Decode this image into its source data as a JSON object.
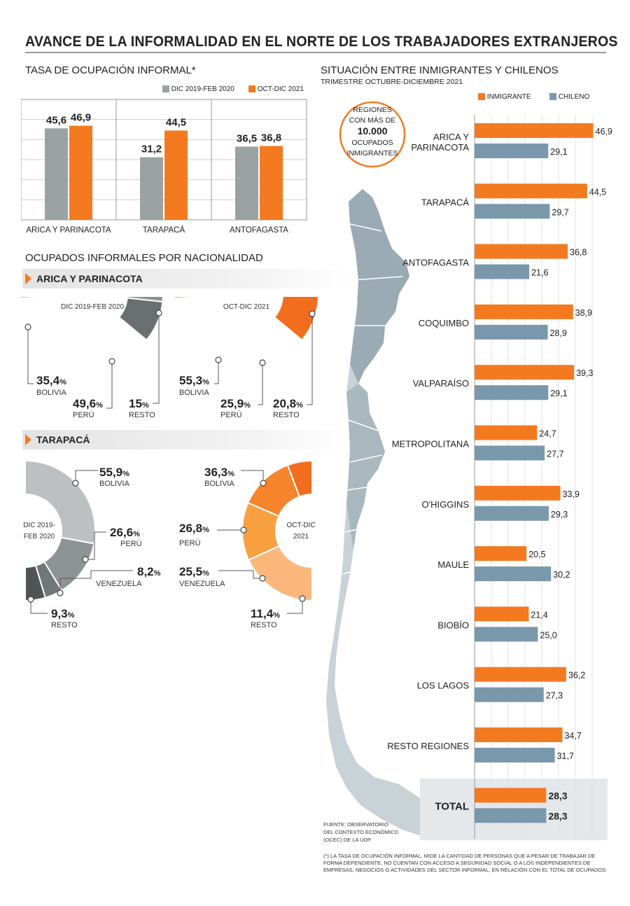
{
  "title": "AVANCE DE LA INFORMALIDAD EN EL NORTE DE LOS TRABAJADORES EXTRANJEROS",
  "colors": {
    "gray": "#9aa2a2",
    "orange": "#f47a20",
    "blue": "#7a98ab",
    "dark": "#505454"
  },
  "chart_data": [
    {
      "type": "bar",
      "title": "TASA DE OCUPACIÓN INFORMAL*",
      "categories": [
        "ARICA Y PARINACOTA",
        "TARAPACÁ",
        "ANTOFAGASTA"
      ],
      "series": [
        {
          "name": "DIC 2019-FEB 2020",
          "values": [
            45.6,
            31.2,
            36.5
          ],
          "labels": [
            "45,6",
            "31,2",
            "36,5"
          ]
        },
        {
          "name": "OCT-DIC 2021",
          "values": [
            46.9,
            44.5,
            36.8
          ],
          "labels": [
            "46,9",
            "44,5",
            "36,8"
          ]
        }
      ],
      "ylim": [
        0,
        60
      ]
    },
    {
      "type": "pie",
      "title": "OCUPADOS INFORMALES POR NACIONALIDAD",
      "region": "ARICA Y PARINACOTA",
      "period": "DIC 2019-FEB 2020",
      "slices": [
        {
          "label": "BOLIVIA",
          "value": 35.4,
          "text": "35,4"
        },
        {
          "label": "PERÚ",
          "value": 49.6,
          "text": "49,6"
        },
        {
          "label": "RESTO",
          "value": 15,
          "text": "15"
        }
      ]
    },
    {
      "type": "pie",
      "region": "ARICA Y PARINACOTA",
      "period": "OCT-DIC 2021",
      "slices": [
        {
          "label": "BOLIVIA",
          "value": 55.3,
          "text": "55,3"
        },
        {
          "label": "PERÚ",
          "value": 25.9,
          "text": "25,9"
        },
        {
          "label": "RESTO",
          "value": 20.8,
          "text": "20,8"
        }
      ]
    },
    {
      "type": "pie",
      "region": "TARAPACÁ",
      "period": "DIC 2019-FEB 2020",
      "slices": [
        {
          "label": "BOLIVIA",
          "value": 55.9,
          "text": "55,9"
        },
        {
          "label": "PERÚ",
          "value": 26.6,
          "text": "26,6"
        },
        {
          "label": "VENEZUELA",
          "value": 8.2,
          "text": "8,2"
        },
        {
          "label": "RESTO",
          "value": 9.3,
          "text": "9,3"
        }
      ]
    },
    {
      "type": "pie",
      "region": "TARAPACÁ",
      "period": "OCT-DIC 2021",
      "slices": [
        {
          "label": "BOLIVIA",
          "value": 36.3,
          "text": "36,3"
        },
        {
          "label": "PERÚ",
          "value": 26.8,
          "text": "26,8"
        },
        {
          "label": "VENEZUELA",
          "value": 25.5,
          "text": "25,5"
        },
        {
          "label": "RESTO",
          "value": 11.4,
          "text": "11,4"
        }
      ]
    },
    {
      "type": "bar",
      "orientation": "horizontal",
      "title": "SITUACIÓN ENTRE INMIGRANTES Y CHILENOS",
      "subtitle": "TRIMESTRE OCTUBRE-DICIEMBRE 2021",
      "categories": [
        "ARICA Y PARINACOTA",
        "TARAPACÁ",
        "ANTOFAGASTA",
        "COQUIMBO",
        "VALPARAÍSO",
        "METROPOLITANA",
        "O'HIGGINS",
        "MAULE",
        "BIOBÍO",
        "LOS LAGOS",
        "RESTO REGIONES",
        "TOTAL"
      ],
      "series": [
        {
          "name": "INMIGRANTE",
          "values": [
            46.9,
            44.5,
            36.8,
            38.9,
            39.3,
            24.7,
            33.9,
            20.5,
            21.4,
            36.2,
            34.7,
            28.3
          ],
          "labels": [
            "46,9",
            "44,5",
            "36,8",
            "38,9",
            "39,3",
            "24,7",
            "33,9",
            "20,5",
            "21,4",
            "36,2",
            "34,7",
            "28,3"
          ]
        },
        {
          "name": "CHILENO",
          "values": [
            29.1,
            29.7,
            21.6,
            28.9,
            29.1,
            27.7,
            29.3,
            30.2,
            25.0,
            27.3,
            31.7,
            28.3
          ],
          "labels": [
            "29,1",
            "29,7",
            "21,6",
            "28,9",
            "29,1",
            "27,7",
            "29,3",
            "30,2",
            "25,0",
            "27,3",
            "31,7",
            "28,3"
          ]
        }
      ]
    }
  ],
  "sections": {
    "rate_title": "TASA DE OCUPACIÓN INFORMAL*",
    "nationality_title": "OCUPADOS INFORMALES POR NACIONALIDAD",
    "region1": "ARICA Y PARINACOTA",
    "region2": "TARAPACÁ",
    "right_title": "SITUACIÓN ENTRE INMIGRANTES Y CHILENOS",
    "right_subtitle": "TRIMESTRE OCTUBRE-DICIEMBRE 2021"
  },
  "legend": {
    "period1": "DIC 2019-FEB 2020",
    "period2": "OCT-DIC 2021",
    "immigrant": "INMIGRANTE",
    "chilean": "CHILENO"
  },
  "donut_centers": {
    "arica1": "DIC 2019-FEB 2020",
    "arica2": "OCT-DIC 2021",
    "tara1_l1": "DIC 2019-",
    "tara1_l2": "FEB 2020",
    "tara2_l1": "OCT-DIC",
    "tara2_l2": "2021"
  },
  "badge": {
    "l1": "REGIONES",
    "l2": "CON MÁS DE",
    "l3": "10.000",
    "l4": "OCUPADOS",
    "l5": "INMIGRANTES"
  },
  "source": {
    "l1": "FUENTE: OBSERVATORIO",
    "l2": "DEL CONTEXTO ECONÓMICO",
    "l3": "(OCEC) DE LA UDP."
  },
  "footnote": {
    "l1": "(*) LA TASA DE OCUPACIÓN INFORMAL, MIDE LA CANTIDAD DE PERSONAS QUE A PESAR DE TRABAJAR DE",
    "l2": "FORMA DEPENDIENTE, NO CUENTAN CON ACCESO A SEGURIDAD SOCIAL O A LOS INDEPENDIENTES DE",
    "l3": "EMPRESAS, NEGOCIOS O ACTIVIDADES DEL SECTOR INFORMAL, EN RELACIÓN CON EL TOTAL DE OCUPADOS."
  },
  "pct": "%"
}
